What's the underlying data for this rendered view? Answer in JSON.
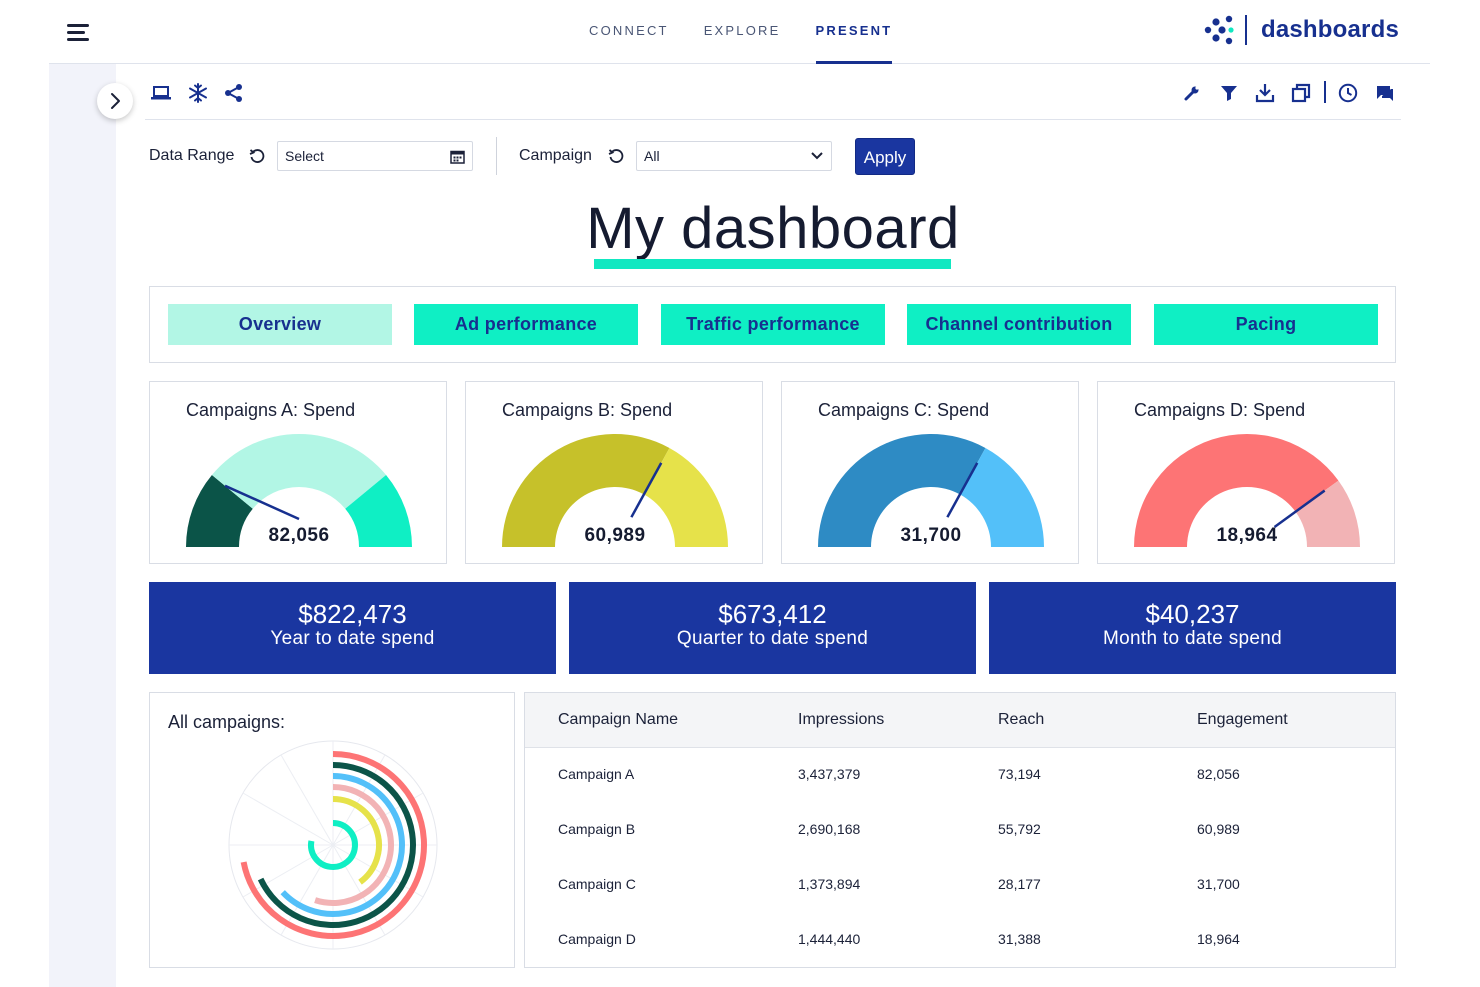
{
  "nav": {
    "items": [
      "CONNECT",
      "EXPLORE",
      "PRESENT"
    ],
    "active": "PRESENT",
    "brand": "dashboards"
  },
  "toolbar": {
    "left_icons": [
      "monitor-icon",
      "snowflake-icon",
      "share-icon"
    ],
    "right_icons": [
      "wrench-icon",
      "filter-icon",
      "download-icon",
      "duplicate-icon",
      "clock-icon",
      "comment-icon"
    ]
  },
  "filters": {
    "date_label": "Data Range",
    "date_value": "Select",
    "campaign_label": "Campaign",
    "campaign_value": "All",
    "apply_label": "Apply"
  },
  "title": "My dashboard",
  "tabs": [
    "Overview",
    "Ad performance",
    "Traffic performance",
    "Channel contribution",
    "Pacing"
  ],
  "active_tab": "Overview",
  "gauges": [
    {
      "title": "Campaigns A: Spend",
      "value": "82,056",
      "fraction": 0.22,
      "colors": [
        "#0b5448",
        "#b2f6e5",
        "#0fefc4"
      ]
    },
    {
      "title": "Campaigns B: Spend",
      "value": "60,989",
      "fraction": 0.66,
      "colors": [
        "#c6c12a",
        "#e6e24a"
      ]
    },
    {
      "title": "Campaigns C: Spend",
      "value": "31,700",
      "fraction": 0.66,
      "colors": [
        "#2e8bc4",
        "#53c0f9"
      ]
    },
    {
      "title": "Campaigns D: Spend",
      "value": "18,964",
      "fraction": 0.8,
      "colors": [
        "#fd7475",
        "#f2b3b5"
      ]
    }
  ],
  "kpis": [
    {
      "value": "$822,473",
      "label": "Year to date spend"
    },
    {
      "value": "$673,412",
      "label": "Quarter to date spend"
    },
    {
      "value": "$40,237",
      "label": "Month to date spend"
    }
  ],
  "radial": {
    "title": "All campaigns:",
    "colors": [
      "#fd7475",
      "#0b5448",
      "#53c0f9",
      "#f2b3b5",
      "#e6e24a",
      "#0fefc4"
    ],
    "rings": [
      0.72,
      0.68,
      0.63,
      0.55,
      0.4,
      0.78
    ]
  },
  "table": {
    "headers": [
      "Campaign Name",
      "Impressions",
      "Reach",
      "Engagement"
    ],
    "rows": [
      [
        "Campaign A",
        "3,437,379",
        "73,194",
        "82,056"
      ],
      [
        "Campaign B",
        "2,690,168",
        "55,792",
        "60,989"
      ],
      [
        "Campaign C",
        "1,373,894",
        "28,177",
        "31,700"
      ],
      [
        "Campaign D",
        "1,444,440",
        "31,388",
        "18,964"
      ]
    ]
  },
  "colors": {
    "brand": "#17308f",
    "accent": "#0fefc4",
    "kpi_bg": "#1a36a0"
  }
}
